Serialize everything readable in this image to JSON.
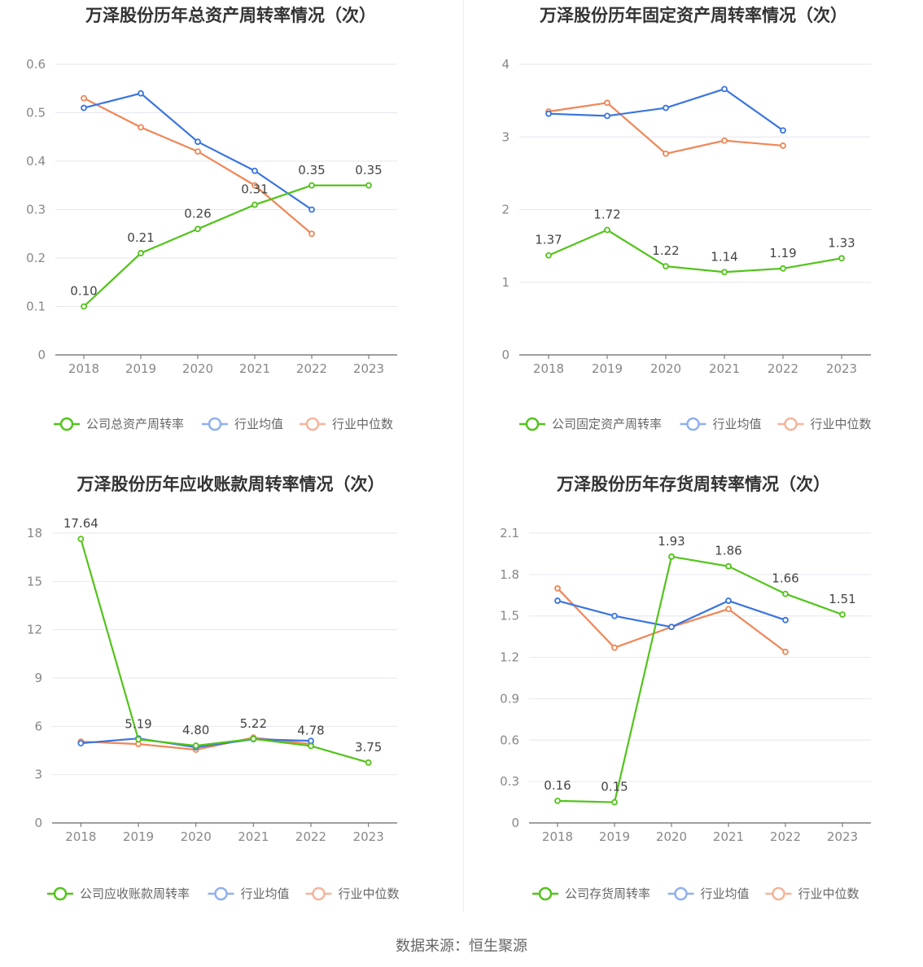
{
  "source": "数据来源：恒生聚源",
  "colors": {
    "company": "#52c41a",
    "industry_avg": "#3a75e0",
    "industry_median": "#f08657"
  },
  "chart_data": [
    {
      "type": "line",
      "title": "万泽股份历年总资产周转率情况（次）",
      "categories": [
        "2018",
        "2019",
        "2020",
        "2021",
        "2022",
        "2023"
      ],
      "ylim": [
        0,
        0.6
      ],
      "yticks": [
        "0",
        "0.1",
        "0.2",
        "0.3",
        "0.4",
        "0.5",
        "0.6"
      ],
      "series": [
        {
          "name": "公司总资产周转率",
          "values": [
            0.1,
            0.21,
            0.26,
            0.31,
            0.35,
            0.35
          ],
          "labels": [
            "0.10",
            "0.21",
            "0.26",
            "0.31",
            "0.35",
            "0.35"
          ]
        },
        {
          "name": "行业均值",
          "values": [
            0.51,
            0.54,
            0.44,
            0.38,
            0.3,
            null
          ]
        },
        {
          "name": "行业中位数",
          "values": [
            0.53,
            0.47,
            0.42,
            0.35,
            0.25,
            null
          ]
        }
      ]
    },
    {
      "type": "line",
      "title": "万泽股份历年固定资产周转率情况（次）",
      "categories": [
        "2018",
        "2019",
        "2020",
        "2021",
        "2022",
        "2023"
      ],
      "ylim": [
        0,
        4
      ],
      "yticks": [
        "0",
        "1",
        "2",
        "3",
        "4"
      ],
      "series": [
        {
          "name": "公司固定资产周转率",
          "values": [
            1.37,
            1.72,
            1.22,
            1.14,
            1.19,
            1.33
          ],
          "labels": [
            "1.37",
            "1.72",
            "1.22",
            "1.14",
            "1.19",
            "1.33"
          ]
        },
        {
          "name": "行业均值",
          "values": [
            3.32,
            3.29,
            3.4,
            3.66,
            3.09,
            null
          ]
        },
        {
          "name": "行业中位数",
          "values": [
            3.35,
            3.47,
            2.77,
            2.95,
            2.88,
            null
          ]
        }
      ]
    },
    {
      "type": "line",
      "title": "万泽股份历年应收账款周转率情况（次）",
      "categories": [
        "2018",
        "2019",
        "2020",
        "2021",
        "2022",
        "2023"
      ],
      "ylim": [
        0,
        18
      ],
      "yticks": [
        "0",
        "3",
        "6",
        "9",
        "12",
        "15",
        "18"
      ],
      "series": [
        {
          "name": "公司应收账款周转率",
          "values": [
            17.64,
            5.19,
            4.8,
            5.22,
            4.78,
            3.75
          ],
          "labels": [
            "17.64",
            "5.19",
            "4.80",
            "5.22",
            "4.78",
            "3.75"
          ]
        },
        {
          "name": "行业均值",
          "values": [
            4.95,
            5.25,
            4.7,
            5.2,
            5.1,
            null
          ]
        },
        {
          "name": "行业中位数",
          "values": [
            5.05,
            4.9,
            4.55,
            5.3,
            4.9,
            null
          ]
        }
      ]
    },
    {
      "type": "line",
      "title": "万泽股份历年存货周转率情况（次）",
      "categories": [
        "2018",
        "2019",
        "2020",
        "2021",
        "2022",
        "2023"
      ],
      "ylim": [
        0,
        2.1
      ],
      "yticks": [
        "0",
        "0.3",
        "0.6",
        "0.9",
        "1.2",
        "1.5",
        "1.8",
        "2.1"
      ],
      "series": [
        {
          "name": "公司存货周转率",
          "values": [
            0.16,
            0.15,
            1.93,
            1.86,
            1.66,
            1.51
          ],
          "labels": [
            "0.16",
            "0.15",
            "1.93",
            "1.86",
            "1.66",
            "1.51"
          ]
        },
        {
          "name": "行业均值",
          "values": [
            1.61,
            1.5,
            1.42,
            1.61,
            1.47,
            null
          ]
        },
        {
          "name": "行业中位数",
          "values": [
            1.7,
            1.27,
            1.42,
            1.55,
            1.24,
            null
          ]
        }
      ]
    }
  ]
}
